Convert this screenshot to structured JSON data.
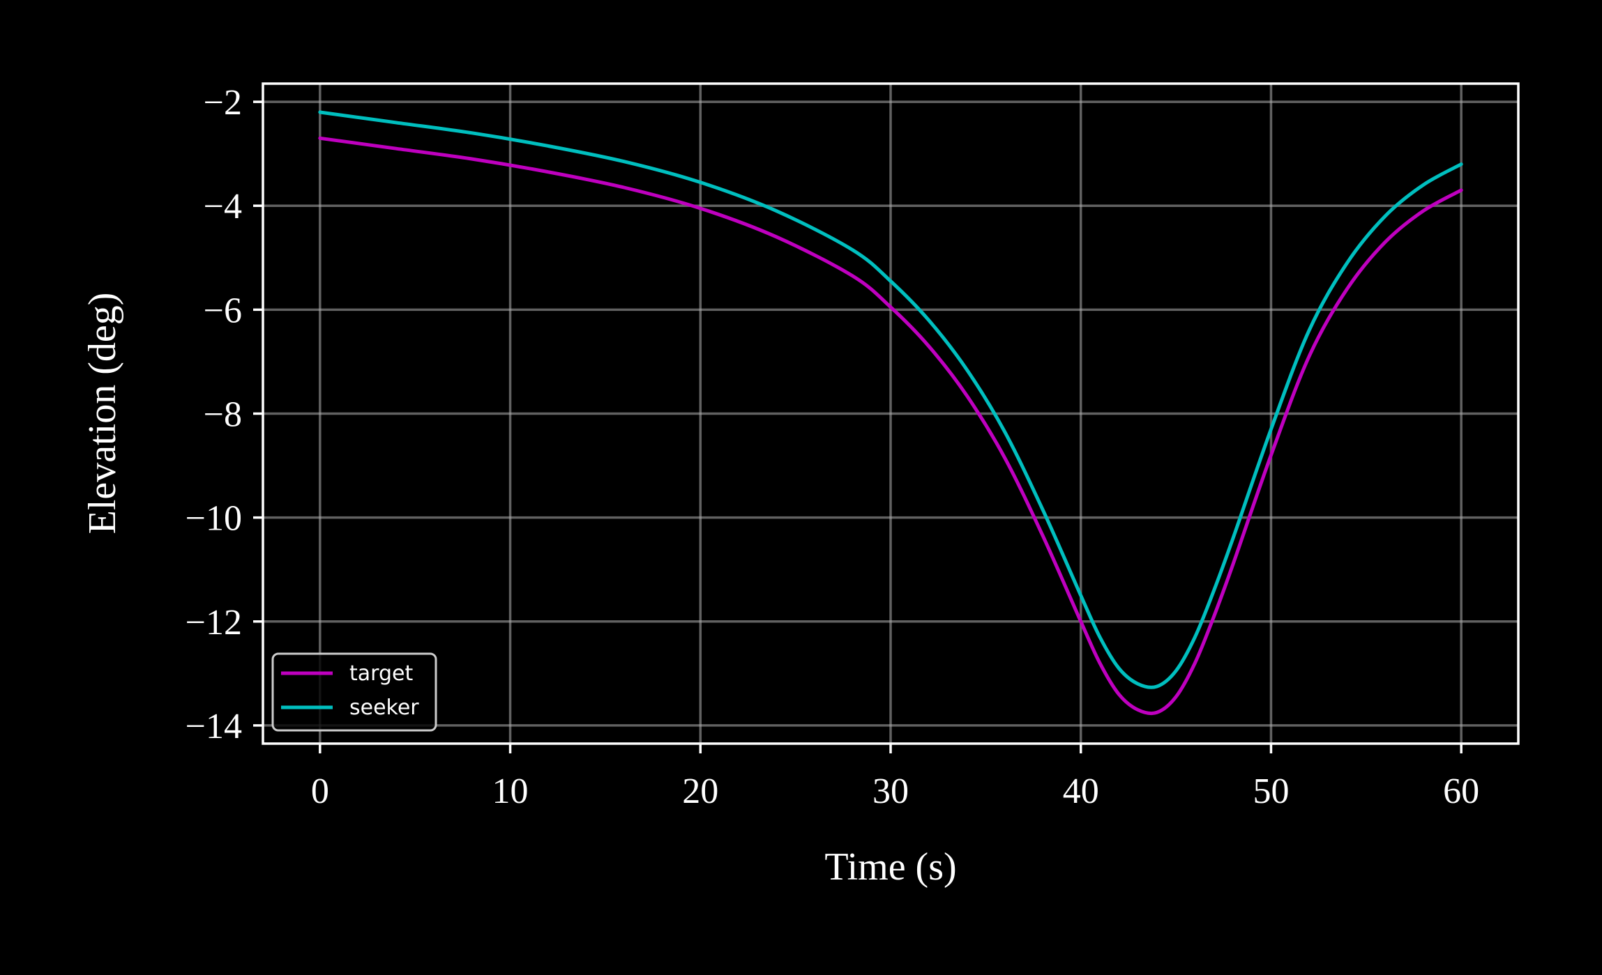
{
  "chart_data": {
    "type": "line",
    "title": "",
    "xlabel": "Time (s)",
    "ylabel": "Elevation (deg)",
    "xlim": [
      -3,
      63
    ],
    "ylim": [
      -14.35,
      -1.65
    ],
    "xticks": [
      0,
      10,
      20,
      30,
      40,
      50,
      60
    ],
    "xtick_labels": [
      "0",
      "10",
      "20",
      "30",
      "40",
      "50",
      "60"
    ],
    "yticks": [
      -2,
      -4,
      -6,
      -8,
      -10,
      -12,
      -14
    ],
    "ytick_labels": [
      "−2",
      "−4",
      "−6",
      "−8",
      "−10",
      "−12",
      "−14"
    ],
    "grid": true,
    "legend_position": "lower-left",
    "background": "#000000",
    "axes_color": "#ffffff",
    "x": [
      0,
      4,
      8,
      12,
      16,
      20,
      24,
      28,
      30,
      32,
      34,
      36,
      38,
      40,
      41,
      42,
      43,
      44,
      45,
      46,
      47,
      48,
      50,
      52,
      54,
      56,
      58,
      60
    ],
    "series": [
      {
        "name": "target",
        "color": "#bf00bf",
        "values": [
          -2.7,
          -2.9,
          -3.1,
          -3.35,
          -3.65,
          -4.05,
          -4.6,
          -5.35,
          -5.95,
          -6.7,
          -7.65,
          -8.85,
          -10.35,
          -12.0,
          -12.8,
          -13.4,
          -13.7,
          -13.75,
          -13.45,
          -12.8,
          -11.9,
          -10.9,
          -8.8,
          -6.9,
          -5.6,
          -4.7,
          -4.1,
          -3.7
        ]
      },
      {
        "name": "seeker",
        "color": "#00bfbf",
        "values": [
          -2.2,
          -2.4,
          -2.6,
          -2.85,
          -3.15,
          -3.55,
          -4.1,
          -4.85,
          -5.45,
          -6.2,
          -7.15,
          -8.35,
          -9.85,
          -11.5,
          -12.3,
          -12.9,
          -13.2,
          -13.25,
          -12.95,
          -12.3,
          -11.4,
          -10.4,
          -8.3,
          -6.4,
          -5.1,
          -4.2,
          -3.6,
          -3.2
        ]
      }
    ]
  }
}
